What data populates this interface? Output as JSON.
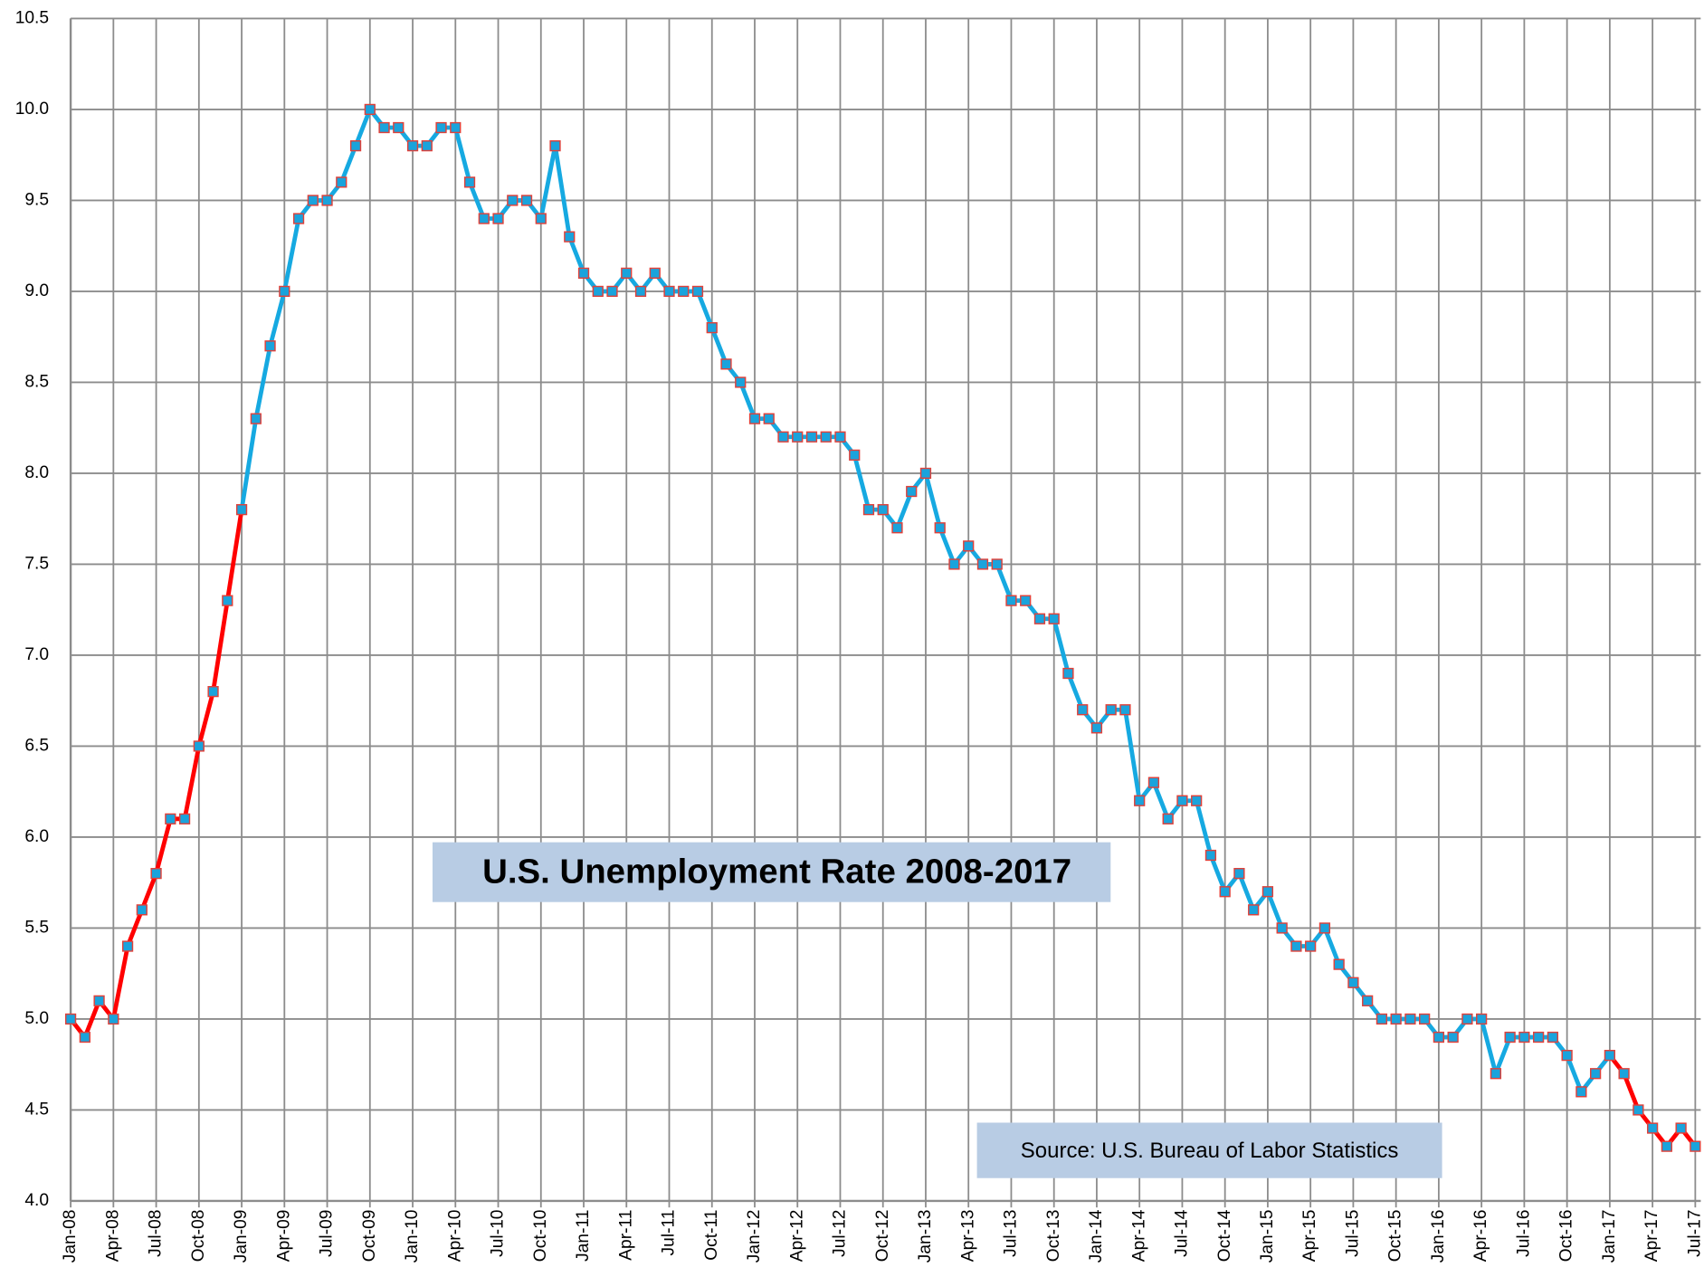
{
  "chart_data": {
    "type": "line",
    "title": "U.S. Unemployment Rate 2008-2017",
    "annotations": [
      "Source:  U.S. Bureau of Labor Statistics"
    ],
    "categories": [
      "Jan-08",
      null,
      null,
      "Apr-08",
      null,
      null,
      "Jul-08",
      null,
      null,
      "Oct-08",
      null,
      null,
      "Jan-09",
      null,
      null,
      "Apr-09",
      null,
      null,
      "Jul-09",
      null,
      null,
      "Oct-09",
      null,
      null,
      "Jan-10",
      null,
      null,
      "Apr-10",
      null,
      null,
      "Jul-10",
      null,
      null,
      "Oct-10",
      null,
      null,
      "Jan-11",
      null,
      null,
      "Apr-11",
      null,
      null,
      "Jul-11",
      null,
      null,
      "Oct-11",
      null,
      null,
      "Jan-12",
      null,
      null,
      "Apr-12",
      null,
      null,
      "Jul-12",
      null,
      null,
      "Oct-12",
      null,
      null,
      "Jan-13",
      null,
      null,
      "Apr-13",
      null,
      null,
      "Jul-13",
      null,
      null,
      "Oct-13",
      null,
      null,
      "Jan-14",
      null,
      null,
      "Apr-14",
      null,
      null,
      "Jul-14",
      null,
      null,
      "Oct-14",
      null,
      null,
      "Jan-15",
      null,
      null,
      "Apr-15",
      null,
      null,
      "Jul-15",
      null,
      null,
      "Oct-15",
      null,
      null,
      "Jan-16",
      null,
      null,
      "Apr-16",
      null,
      null,
      "Jul-16",
      null,
      null,
      "Oct-16",
      null,
      null,
      "Jan-17",
      null,
      null,
      "Apr-17",
      null,
      null,
      "Jul-17"
    ],
    "values": [
      5.0,
      4.9,
      5.1,
      5.0,
      5.4,
      5.6,
      5.8,
      6.1,
      6.1,
      6.5,
      6.8,
      7.3,
      7.8,
      8.3,
      8.7,
      9.0,
      9.4,
      9.5,
      9.5,
      9.6,
      9.8,
      10.0,
      9.9,
      9.9,
      9.8,
      9.8,
      9.9,
      9.9,
      9.6,
      9.4,
      9.4,
      9.5,
      9.5,
      9.4,
      9.8,
      9.3,
      9.1,
      9.0,
      9.0,
      9.1,
      9.0,
      9.1,
      9.0,
      9.0,
      9.0,
      8.8,
      8.6,
      8.5,
      8.3,
      8.3,
      8.2,
      8.2,
      8.2,
      8.2,
      8.2,
      8.1,
      7.8,
      7.8,
      7.7,
      7.9,
      8.0,
      7.7,
      7.5,
      7.6,
      7.5,
      7.5,
      7.3,
      7.3,
      7.2,
      7.2,
      6.9,
      6.7,
      6.6,
      6.7,
      6.7,
      6.2,
      6.3,
      6.1,
      6.2,
      6.2,
      5.9,
      5.7,
      5.8,
      5.6,
      5.7,
      5.5,
      5.4,
      5.4,
      5.5,
      5.3,
      5.2,
      5.1,
      5.0,
      5.0,
      5.0,
      5.0,
      4.9,
      4.9,
      5.0,
      5.0,
      4.7,
      4.9,
      4.9,
      4.9,
      4.9,
      4.8,
      4.6,
      4.7,
      4.8,
      4.7,
      4.5,
      4.4,
      4.3,
      4.4,
      4.3
    ],
    "segment_colors": [
      "#ff0000",
      "#ff0000",
      "#ff0000",
      "#ff0000",
      "#ff0000",
      "#ff0000",
      "#ff0000",
      "#ff0000",
      "#ff0000",
      "#ff0000",
      "#ff0000",
      "#ff0000",
      "#16a9e1",
      "#16a9e1",
      "#16a9e1",
      "#16a9e1",
      "#16a9e1",
      "#16a9e1",
      "#16a9e1",
      "#16a9e1",
      "#16a9e1",
      "#16a9e1",
      "#16a9e1",
      "#16a9e1",
      "#16a9e1",
      "#16a9e1",
      "#16a9e1",
      "#16a9e1",
      "#16a9e1",
      "#16a9e1",
      "#16a9e1",
      "#16a9e1",
      "#16a9e1",
      "#16a9e1",
      "#16a9e1",
      "#16a9e1",
      "#16a9e1",
      "#16a9e1",
      "#16a9e1",
      "#16a9e1",
      "#16a9e1",
      "#16a9e1",
      "#16a9e1",
      "#16a9e1",
      "#16a9e1",
      "#16a9e1",
      "#16a9e1",
      "#16a9e1",
      "#16a9e1",
      "#16a9e1",
      "#16a9e1",
      "#16a9e1",
      "#16a9e1",
      "#16a9e1",
      "#16a9e1",
      "#16a9e1",
      "#16a9e1",
      "#16a9e1",
      "#16a9e1",
      "#16a9e1",
      "#16a9e1",
      "#16a9e1",
      "#16a9e1",
      "#16a9e1",
      "#16a9e1",
      "#16a9e1",
      "#16a9e1",
      "#16a9e1",
      "#16a9e1",
      "#16a9e1",
      "#16a9e1",
      "#16a9e1",
      "#16a9e1",
      "#16a9e1",
      "#16a9e1",
      "#16a9e1",
      "#16a9e1",
      "#16a9e1",
      "#16a9e1",
      "#16a9e1",
      "#16a9e1",
      "#16a9e1",
      "#16a9e1",
      "#16a9e1",
      "#16a9e1",
      "#16a9e1",
      "#16a9e1",
      "#16a9e1",
      "#16a9e1",
      "#16a9e1",
      "#16a9e1",
      "#16a9e1",
      "#16a9e1",
      "#16a9e1",
      "#16a9e1",
      "#16a9e1",
      "#16a9e1",
      "#16a9e1",
      "#16a9e1",
      "#16a9e1",
      "#16a9e1",
      "#16a9e1",
      "#16a9e1",
      "#16a9e1",
      "#16a9e1",
      "#16a9e1",
      "#16a9e1",
      "#16a9e1",
      "#ff0000",
      "#ff0000",
      "#ff0000",
      "#ff0000",
      "#ff0000",
      "#ff0000"
    ],
    "marker_color": "#1aa3dc",
    "marker_edge_color": "#e0413a",
    "ylim": [
      4,
      10.5
    ],
    "yticks": [
      {
        "value": 4,
        "label": "4.0"
      },
      4.5,
      {
        "value": 5,
        "label": "5.0"
      },
      5.5,
      {
        "value": 6,
        "label": "6.0"
      },
      6.5,
      {
        "value": 7,
        "label": "7.0"
      },
      7.5,
      {
        "value": 8,
        "label": "8.0"
      },
      8.5,
      {
        "value": 9,
        "label": "9.0"
      },
      9.5,
      {
        "value": 10,
        "label": "10.0"
      },
      10.5
    ],
    "grid": true
  }
}
